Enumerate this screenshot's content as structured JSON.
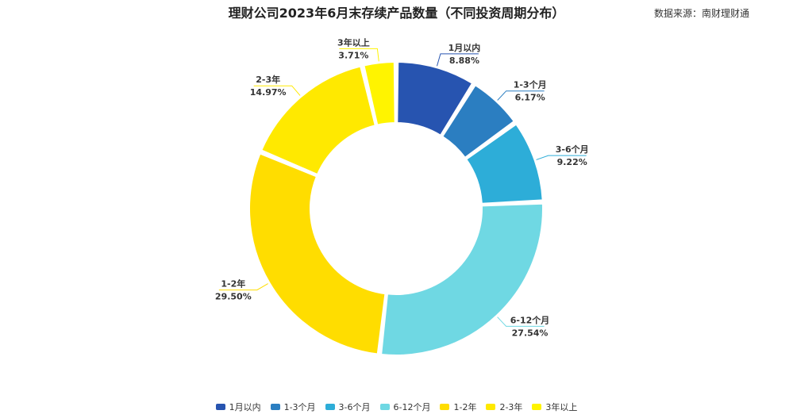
{
  "header": {
    "title": "理财公司2023年6月末存续产品数量（不同投资周期分布）",
    "source": "数据来源：南财理财通"
  },
  "chart_data": {
    "type": "pie",
    "donut": true,
    "title": "理财公司2023年6月末存续产品数量（不同投资周期分布）",
    "categories": [
      "1月以内",
      "1-3个月",
      "3-6个月",
      "6-12个月",
      "1-2年",
      "2-3年",
      "3年以上"
    ],
    "values": [
      8.88,
      6.17,
      9.22,
      27.54,
      29.5,
      14.97,
      3.71
    ],
    "labels": [
      "8.88%",
      "6.17%",
      "9.22%",
      "27.54%",
      "29.50%",
      "14.97%",
      "3.71%"
    ],
    "colors": [
      "#2754B0",
      "#2B7EC1",
      "#2DADD8",
      "#6FD8E3",
      "#FFDD00",
      "#FFE900",
      "#FFF400"
    ],
    "legend_position": "bottom"
  }
}
